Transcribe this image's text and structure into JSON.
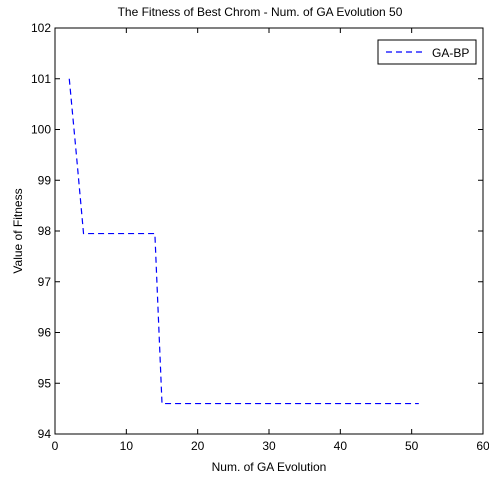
{
  "chart_data": {
    "type": "line",
    "title": "The Fitness of Best Chrom -  Num. of GA Evolution 50",
    "xlabel": "Num. of GA Evolution",
    "ylabel": "Value of Fitness",
    "xlim": [
      0,
      60
    ],
    "ylim": [
      94,
      102
    ],
    "xticks": [
      0,
      10,
      20,
      30,
      40,
      50,
      60
    ],
    "yticks": [
      94,
      95,
      96,
      97,
      98,
      99,
      100,
      101,
      102
    ],
    "grid": false,
    "legend_position": "top-right",
    "series": [
      {
        "name": "GA-BP",
        "color": "#0000ff",
        "line_style": "dashed",
        "x": [
          2,
          3,
          4,
          5,
          6,
          7,
          8,
          9,
          10,
          11,
          12,
          13,
          14,
          15,
          16,
          17,
          18,
          19,
          20,
          21,
          22,
          23,
          24,
          25,
          26,
          27,
          28,
          29,
          30,
          31,
          32,
          33,
          34,
          35,
          36,
          37,
          38,
          39,
          40,
          41,
          42,
          43,
          44,
          45,
          46,
          47,
          48,
          49,
          50,
          51
        ],
        "y": [
          101,
          99.5,
          97.95,
          97.95,
          97.95,
          97.95,
          97.95,
          97.95,
          97.95,
          97.95,
          97.95,
          97.95,
          97.95,
          94.6,
          94.6,
          94.6,
          94.6,
          94.6,
          94.6,
          94.6,
          94.6,
          94.6,
          94.6,
          94.6,
          94.6,
          94.6,
          94.6,
          94.6,
          94.6,
          94.6,
          94.6,
          94.6,
          94.6,
          94.6,
          94.6,
          94.6,
          94.6,
          94.6,
          94.6,
          94.6,
          94.6,
          94.6,
          94.6,
          94.6,
          94.6,
          94.6,
          94.6,
          94.6,
          94.6,
          94.6
        ]
      }
    ]
  }
}
